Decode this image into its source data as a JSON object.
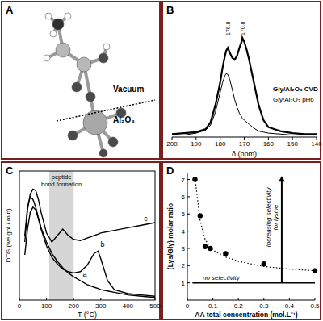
{
  "chart_data": [
    {
      "type": "diagram",
      "label": "A",
      "texts": [
        "Vacuum",
        "Al₂O₃"
      ]
    },
    {
      "type": "line",
      "label": "B",
      "x_label": "δ (ppm)",
      "x": [
        200,
        195,
        190,
        186,
        184,
        182,
        180,
        179,
        178,
        177.5,
        176.8,
        176,
        175,
        174,
        173,
        172,
        171,
        170.8,
        170,
        169,
        168,
        166,
        164,
        162,
        160,
        155,
        150,
        145,
        140
      ],
      "xlim": [
        200,
        140
      ],
      "xticks": [
        200,
        190,
        180,
        170,
        160,
        150,
        140
      ],
      "ylim": [
        0,
        1.3
      ],
      "tick_labels": "x",
      "series": [
        {
          "name": "Gly/Al₂O₃ CVD",
          "color": "#000000",
          "line_style": "thick",
          "values": [
            0.03,
            0.04,
            0.05,
            0.08,
            0.15,
            0.32,
            0.55,
            0.7,
            0.82,
            0.87,
            0.9,
            0.85,
            0.8,
            0.78,
            0.82,
            0.9,
            0.97,
            1.0,
            0.96,
            0.88,
            0.78,
            0.55,
            0.32,
            0.17,
            0.1,
            0.06,
            0.04,
            0.03,
            0.03
          ]
        },
        {
          "name": "Gly/Al₂O₃ pH6",
          "color": "#000000",
          "line_style": "solid",
          "values": [
            0.02,
            0.02,
            0.04,
            0.07,
            0.12,
            0.25,
            0.45,
            0.55,
            0.62,
            0.64,
            0.63,
            0.58,
            0.48,
            0.38,
            0.3,
            0.24,
            0.2,
            0.19,
            0.17,
            0.15,
            0.13,
            0.09,
            0.06,
            0.05,
            0.04,
            0.03,
            0.02,
            0.02,
            0.02
          ]
        }
      ],
      "annotations": [
        {
          "x": 176.8,
          "label": "176.8"
        },
        {
          "x": 170.8,
          "label": "170.8"
        }
      ]
    },
    {
      "type": "line",
      "label": "C",
      "x_label": "T (°C)",
      "y_label": "DTG (weight / min)",
      "x": [
        20,
        30,
        40,
        50,
        60,
        70,
        80,
        100,
        120,
        140,
        160,
        180,
        200,
        225,
        250,
        275,
        290,
        300,
        325,
        350,
        400,
        450,
        500
      ],
      "xlim": [
        0,
        500
      ],
      "xticks": [
        0,
        100,
        200,
        300,
        400,
        500
      ],
      "ylim": [
        0,
        1
      ],
      "tick_labels": "x",
      "series": [
        {
          "name": "a",
          "color": "#000000",
          "values": [
            0.5,
            0.72,
            0.8,
            0.78,
            0.72,
            0.64,
            0.56,
            0.45,
            0.36,
            0.3,
            0.25,
            0.21,
            0.18,
            0.15,
            0.12,
            0.1,
            0.09,
            0.08,
            0.07,
            0.06,
            0.04,
            0.03,
            0.02
          ]
        },
        {
          "name": "b",
          "color": "#000000",
          "values": [
            0.35,
            0.55,
            0.68,
            0.72,
            0.7,
            0.63,
            0.55,
            0.42,
            0.33,
            0.28,
            0.24,
            0.22,
            0.21,
            0.22,
            0.27,
            0.36,
            0.38,
            0.32,
            0.15,
            0.08,
            0.05,
            0.04,
            0.03
          ]
        },
        {
          "name": "c",
          "color": "#000000",
          "values": [
            0.45,
            0.7,
            0.82,
            0.86,
            0.85,
            0.78,
            0.68,
            0.52,
            0.45,
            0.5,
            0.55,
            0.5,
            0.47,
            0.46,
            0.48,
            0.5,
            0.51,
            0.52,
            0.53,
            0.54,
            0.56,
            0.58,
            0.6
          ]
        }
      ],
      "band": {
        "range": [
          110,
          200
        ],
        "label": [
          "peptide",
          "bond formation"
        ]
      }
    },
    {
      "type": "scatter",
      "label": "D",
      "x_label": "AA total concentration (mol.L⁻¹)",
      "y_label": "(Lys/Gly) molar ratio",
      "xlim": [
        0,
        0.5
      ],
      "xticks": [
        0,
        0.1,
        0.2,
        0.3,
        0.4,
        0.5
      ],
      "ylim": [
        0,
        7.4
      ],
      "yticks": [
        1,
        2,
        3,
        4,
        5,
        6,
        7
      ],
      "series": [
        {
          "type": "scatter",
          "color": "#000000",
          "marker": "circle",
          "x": [
            0.03,
            0.05,
            0.07,
            0.09,
            0.15,
            0.3,
            0.5
          ],
          "values": [
            7.0,
            4.9,
            3.1,
            3.0,
            2.7,
            2.1,
            1.7
          ]
        },
        {
          "type": "line",
          "color": "#000000",
          "line_style": "dotted",
          "x": [
            0.03,
            0.05,
            0.07,
            0.1,
            0.15,
            0.2,
            0.3,
            0.4,
            0.5
          ],
          "values": [
            7.1,
            4.6,
            3.5,
            2.9,
            2.5,
            2.25,
            1.95,
            1.8,
            1.7
          ]
        }
      ],
      "reference_line": {
        "value": 1,
        "label": "no selectivity"
      },
      "arrow": {
        "x": 0.37,
        "from": 1,
        "to": 7.2,
        "label": [
          "Increasing selectivity",
          "for lysine"
        ]
      }
    }
  ]
}
